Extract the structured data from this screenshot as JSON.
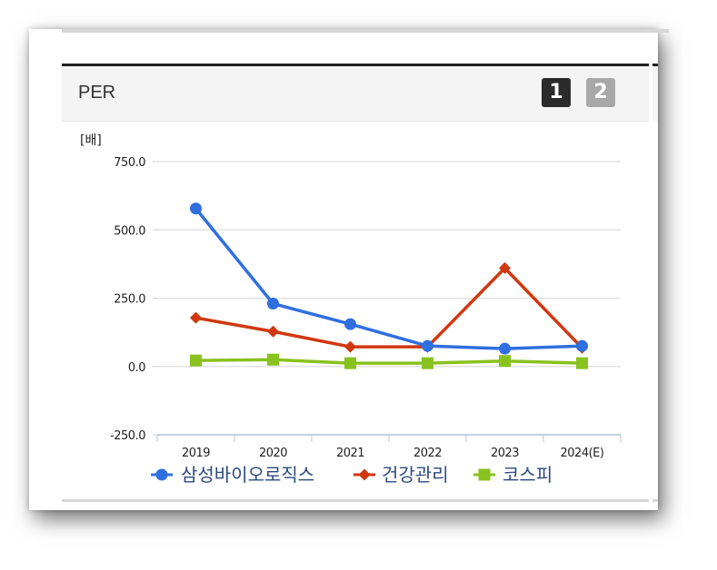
{
  "panel": {
    "title": "PER",
    "page_buttons": [
      "1",
      "2"
    ],
    "active_page": "1"
  },
  "chart_data": {
    "type": "line",
    "unit_label": "[배]",
    "categories": [
      "2019",
      "2020",
      "2021",
      "2022",
      "2023",
      "2024(E)"
    ],
    "ylim": [
      -250,
      750
    ],
    "yticks": [
      750,
      500,
      250,
      0,
      -250
    ],
    "ytick_labels": [
      "750.0",
      "500.0",
      "250.0",
      "0.0",
      "-250.0"
    ],
    "grid": true,
    "legend_position": "bottom",
    "series": [
      {
        "name": "삼성바이오로직스",
        "values": [
          578,
          230,
          155,
          75,
          65,
          75
        ],
        "color": "#2f6fe0",
        "marker": "circle"
      },
      {
        "name": "건강관리",
        "values": [
          178,
          128,
          72,
          72,
          360,
          68
        ],
        "color": "#d03810",
        "marker": "diamond"
      },
      {
        "name": "코스피",
        "values": [
          22,
          25,
          12,
          12,
          20,
          12
        ],
        "color": "#88c21e",
        "marker": "square"
      }
    ]
  }
}
